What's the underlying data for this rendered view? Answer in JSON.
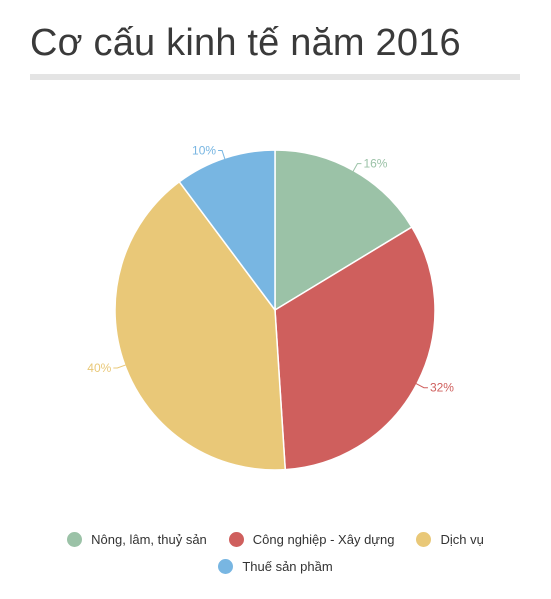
{
  "title": "Cơ cấu kinh tế năm 2016",
  "chart_data": {
    "type": "pie",
    "categories": [
      "Nông, lâm, thuỷ sản",
      "Công nghiệp - Xây dựng",
      "Dịch vụ",
      "Thuế sản phầm"
    ],
    "values": [
      16,
      32,
      40,
      10
    ],
    "value_labels": [
      "16%",
      "32%",
      "40%",
      "10%"
    ],
    "colors": [
      "#9bc2a7",
      "#cf5f5d",
      "#e9c878",
      "#78b6e2"
    ],
    "legend_position": "bottom"
  }
}
